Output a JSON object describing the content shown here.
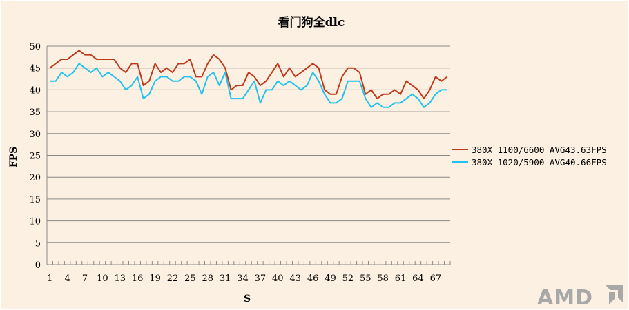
{
  "chart_data": {
    "type": "line",
    "title": "看门狗全dlc",
    "xlabel": "S",
    "ylabel": "FPS",
    "ylim": [
      0,
      50
    ],
    "yticks": [
      0,
      5,
      10,
      15,
      20,
      25,
      30,
      35,
      40,
      45,
      50
    ],
    "xticks": [
      1,
      4,
      7,
      10,
      13,
      16,
      19,
      22,
      25,
      28,
      31,
      34,
      37,
      40,
      43,
      46,
      49,
      52,
      55,
      58,
      61,
      64,
      67
    ],
    "x_count": 69,
    "grid": "horizontal",
    "legend_position": "right",
    "series": [
      {
        "name": "380X 1100/6600 AVG43.63FPS",
        "color": "#c0391b",
        "values": [
          45,
          46,
          47,
          47,
          48,
          49,
          48,
          48,
          47,
          47,
          47,
          47,
          45,
          44,
          46,
          46,
          41,
          42,
          46,
          44,
          45,
          44,
          46,
          46,
          47,
          43,
          43,
          46,
          48,
          47,
          45,
          40,
          41,
          41,
          44,
          43,
          41,
          42,
          44,
          46,
          43,
          45,
          43,
          44,
          45,
          46,
          45,
          40,
          39,
          39,
          43,
          45,
          45,
          44,
          39,
          40,
          38,
          39,
          39,
          40,
          39,
          42,
          41,
          40,
          38,
          40,
          43,
          42,
          43
        ]
      },
      {
        "name": "380X 1020/5900 AVG40.66FPS",
        "color": "#1ec3ef",
        "values": [
          42,
          42,
          44,
          43,
          44,
          46,
          45,
          44,
          45,
          43,
          44,
          43,
          42,
          40,
          41,
          43,
          38,
          39,
          42,
          43,
          43,
          42,
          42,
          43,
          43,
          42,
          39,
          43,
          44,
          41,
          44,
          38,
          38,
          38,
          40,
          42,
          37,
          40,
          40,
          42,
          41,
          42,
          41,
          40,
          41,
          44,
          42,
          39,
          37,
          37,
          38,
          42,
          42,
          42,
          38,
          36,
          37,
          36,
          36,
          37,
          37,
          38,
          39,
          38,
          36,
          37,
          39,
          40,
          40
        ]
      }
    ]
  },
  "logo": {
    "text": "AMD",
    "icon": "amd-arrow-icon"
  }
}
